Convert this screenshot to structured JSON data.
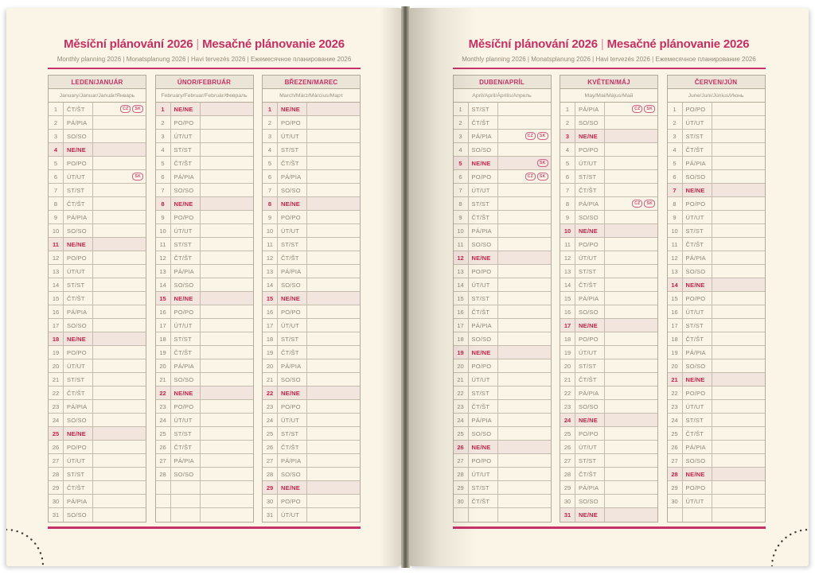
{
  "title": {
    "cs": "Měsíční plánování 2026",
    "divider": "|",
    "sk": "Mesačné plánovanie 2026"
  },
  "subtitle": "Monthly planning 2026 | Monatsplanung 2026 | Havi tervezés 2026 | Ежемесячное планирование 2026",
  "rows_per_month": 31,
  "sunday_label": "NE/NE",
  "badge_labels": [
    "CZ",
    "SK"
  ],
  "colors": {
    "page_background": "#faf5e6",
    "accent_pink": "#c6316a",
    "sunday_red": "#c1244a",
    "sunday_row_background": "#f2e5de",
    "body_text": "#8e8475",
    "header_row_background": "#eae5d7",
    "table_border": "#b3aa99"
  },
  "months": [
    {
      "key": "leden",
      "header": "LEDEN/JANUÁR",
      "subheader": "January/Januar/Január/Январь",
      "days": [
        {
          "d": 1,
          "w": "ČT/ŠT",
          "b": [
            "CZ",
            "SK"
          ]
        },
        {
          "d": 2,
          "w": "PÁ/PIA"
        },
        {
          "d": 3,
          "w": "SO/SO"
        },
        {
          "d": 4,
          "w": "NE/NE"
        },
        {
          "d": 5,
          "w": "PO/PO"
        },
        {
          "d": 6,
          "w": "ÚT/UT",
          "b": [
            "SK"
          ]
        },
        {
          "d": 7,
          "w": "ST/ST"
        },
        {
          "d": 8,
          "w": "ČT/ŠT"
        },
        {
          "d": 9,
          "w": "PÁ/PIA"
        },
        {
          "d": 10,
          "w": "SO/SO"
        },
        {
          "d": 11,
          "w": "NE/NE"
        },
        {
          "d": 12,
          "w": "PO/PO"
        },
        {
          "d": 13,
          "w": "ÚT/UT"
        },
        {
          "d": 14,
          "w": "ST/ST"
        },
        {
          "d": 15,
          "w": "ČT/ŠT"
        },
        {
          "d": 16,
          "w": "PÁ/PIA"
        },
        {
          "d": 17,
          "w": "SO/SO"
        },
        {
          "d": 18,
          "w": "NE/NE"
        },
        {
          "d": 19,
          "w": "PO/PO"
        },
        {
          "d": 20,
          "w": "ÚT/UT"
        },
        {
          "d": 21,
          "w": "ST/ST"
        },
        {
          "d": 22,
          "w": "ČT/ŠT"
        },
        {
          "d": 23,
          "w": "PÁ/PIA"
        },
        {
          "d": 24,
          "w": "SO/SO"
        },
        {
          "d": 25,
          "w": "NE/NE"
        },
        {
          "d": 26,
          "w": "PO/PO"
        },
        {
          "d": 27,
          "w": "ÚT/UT"
        },
        {
          "d": 28,
          "w": "ST/ST"
        },
        {
          "d": 29,
          "w": "ČT/ŠT"
        },
        {
          "d": 30,
          "w": "PÁ/PIA"
        },
        {
          "d": 31,
          "w": "SO/SO"
        }
      ]
    },
    {
      "key": "unor",
      "header": "ÚNOR/FEBRUÁR",
      "subheader": "February/Februar/Február/Февраль",
      "days": [
        {
          "d": 1,
          "w": "NE/NE"
        },
        {
          "d": 2,
          "w": "PO/PO"
        },
        {
          "d": 3,
          "w": "ÚT/UT"
        },
        {
          "d": 4,
          "w": "ST/ST"
        },
        {
          "d": 5,
          "w": "ČT/ŠT"
        },
        {
          "d": 6,
          "w": "PÁ/PIA"
        },
        {
          "d": 7,
          "w": "SO/SO"
        },
        {
          "d": 8,
          "w": "NE/NE"
        },
        {
          "d": 9,
          "w": "PO/PO"
        },
        {
          "d": 10,
          "w": "ÚT/UT"
        },
        {
          "d": 11,
          "w": "ST/ST"
        },
        {
          "d": 12,
          "w": "ČT/ŠT"
        },
        {
          "d": 13,
          "w": "PÁ/PIA"
        },
        {
          "d": 14,
          "w": "SO/SO"
        },
        {
          "d": 15,
          "w": "NE/NE"
        },
        {
          "d": 16,
          "w": "PO/PO"
        },
        {
          "d": 17,
          "w": "ÚT/UT"
        },
        {
          "d": 18,
          "w": "ST/ST"
        },
        {
          "d": 19,
          "w": "ČT/ŠT"
        },
        {
          "d": 20,
          "w": "PÁ/PIA"
        },
        {
          "d": 21,
          "w": "SO/SO"
        },
        {
          "d": 22,
          "w": "NE/NE"
        },
        {
          "d": 23,
          "w": "PO/PO"
        },
        {
          "d": 24,
          "w": "ÚT/UT"
        },
        {
          "d": 25,
          "w": "ST/ST"
        },
        {
          "d": 26,
          "w": "ČT/ŠT"
        },
        {
          "d": 27,
          "w": "PÁ/PIA"
        },
        {
          "d": 28,
          "w": "SO/SO"
        }
      ]
    },
    {
      "key": "brezen",
      "header": "BŘEZEN/MAREC",
      "subheader": "March/März/Március/Март",
      "days": [
        {
          "d": 1,
          "w": "NE/NE"
        },
        {
          "d": 2,
          "w": "PO/PO"
        },
        {
          "d": 3,
          "w": "ÚT/UT"
        },
        {
          "d": 4,
          "w": "ST/ST"
        },
        {
          "d": 5,
          "w": "ČT/ŠT"
        },
        {
          "d": 6,
          "w": "PÁ/PIA"
        },
        {
          "d": 7,
          "w": "SO/SO"
        },
        {
          "d": 8,
          "w": "NE/NE"
        },
        {
          "d": 9,
          "w": "PO/PO"
        },
        {
          "d": 10,
          "w": "ÚT/UT"
        },
        {
          "d": 11,
          "w": "ST/ST"
        },
        {
          "d": 12,
          "w": "ČT/ŠT"
        },
        {
          "d": 13,
          "w": "PÁ/PIA"
        },
        {
          "d": 14,
          "w": "SO/SO"
        },
        {
          "d": 15,
          "w": "NE/NE"
        },
        {
          "d": 16,
          "w": "PO/PO"
        },
        {
          "d": 17,
          "w": "ÚT/UT"
        },
        {
          "d": 18,
          "w": "ST/ST"
        },
        {
          "d": 19,
          "w": "ČT/ŠT"
        },
        {
          "d": 20,
          "w": "PÁ/PIA"
        },
        {
          "d": 21,
          "w": "SO/SO"
        },
        {
          "d": 22,
          "w": "NE/NE"
        },
        {
          "d": 23,
          "w": "PO/PO"
        },
        {
          "d": 24,
          "w": "ÚT/UT"
        },
        {
          "d": 25,
          "w": "ST/ST"
        },
        {
          "d": 26,
          "w": "ČT/ŠT"
        },
        {
          "d": 27,
          "w": "PÁ/PIA"
        },
        {
          "d": 28,
          "w": "SO/SO"
        },
        {
          "d": 29,
          "w": "NE/NE"
        },
        {
          "d": 30,
          "w": "PO/PO"
        },
        {
          "d": 31,
          "w": "ÚT/UT"
        }
      ]
    },
    {
      "key": "duben",
      "header": "DUBEN/APRÍL",
      "subheader": "April/April/Április/Апрель",
      "days": [
        {
          "d": 1,
          "w": "ST/ST"
        },
        {
          "d": 2,
          "w": "ČT/ŠT"
        },
        {
          "d": 3,
          "w": "PÁ/PIA",
          "b": [
            "CZ",
            "SK"
          ]
        },
        {
          "d": 4,
          "w": "SO/SO"
        },
        {
          "d": 5,
          "w": "NE/NE",
          "b": [
            "SK"
          ]
        },
        {
          "d": 6,
          "w": "PO/PO",
          "b": [
            "CZ",
            "SK"
          ]
        },
        {
          "d": 7,
          "w": "ÚT/UT"
        },
        {
          "d": 8,
          "w": "ST/ST"
        },
        {
          "d": 9,
          "w": "ČT/ŠT"
        },
        {
          "d": 10,
          "w": "PÁ/PIA"
        },
        {
          "d": 11,
          "w": "SO/SO"
        },
        {
          "d": 12,
          "w": "NE/NE"
        },
        {
          "d": 13,
          "w": "PO/PO"
        },
        {
          "d": 14,
          "w": "ÚT/UT"
        },
        {
          "d": 15,
          "w": "ST/ST"
        },
        {
          "d": 16,
          "w": "ČT/ŠT"
        },
        {
          "d": 17,
          "w": "PÁ/PIA"
        },
        {
          "d": 18,
          "w": "SO/SO"
        },
        {
          "d": 19,
          "w": "NE/NE"
        },
        {
          "d": 20,
          "w": "PO/PO"
        },
        {
          "d": 21,
          "w": "ÚT/UT"
        },
        {
          "d": 22,
          "w": "ST/ST"
        },
        {
          "d": 23,
          "w": "ČT/ŠT"
        },
        {
          "d": 24,
          "w": "PÁ/PIA"
        },
        {
          "d": 25,
          "w": "SO/SO"
        },
        {
          "d": 26,
          "w": "NE/NE"
        },
        {
          "d": 27,
          "w": "PO/PO"
        },
        {
          "d": 28,
          "w": "ÚT/UT"
        },
        {
          "d": 29,
          "w": "ST/ST"
        },
        {
          "d": 30,
          "w": "ČT/ŠT"
        }
      ]
    },
    {
      "key": "kveten",
      "header": "KVĚTEN/MÁJ",
      "subheader": "May/Mai/Május/Май",
      "days": [
        {
          "d": 1,
          "w": "PÁ/PIA",
          "b": [
            "CZ",
            "SK"
          ]
        },
        {
          "d": 2,
          "w": "SO/SO"
        },
        {
          "d": 3,
          "w": "NE/NE"
        },
        {
          "d": 4,
          "w": "PO/PO"
        },
        {
          "d": 5,
          "w": "ÚT/UT"
        },
        {
          "d": 6,
          "w": "ST/ST"
        },
        {
          "d": 7,
          "w": "ČT/ŠT"
        },
        {
          "d": 8,
          "w": "PÁ/PIA",
          "b": [
            "CZ",
            "SK"
          ]
        },
        {
          "d": 9,
          "w": "SO/SO"
        },
        {
          "d": 10,
          "w": "NE/NE"
        },
        {
          "d": 11,
          "w": "PO/PO"
        },
        {
          "d": 12,
          "w": "ÚT/UT"
        },
        {
          "d": 13,
          "w": "ST/ST"
        },
        {
          "d": 14,
          "w": "ČT/ŠT"
        },
        {
          "d": 15,
          "w": "PÁ/PIA"
        },
        {
          "d": 16,
          "w": "SO/SO"
        },
        {
          "d": 17,
          "w": "NE/NE"
        },
        {
          "d": 18,
          "w": "PO/PO"
        },
        {
          "d": 19,
          "w": "ÚT/UT"
        },
        {
          "d": 20,
          "w": "ST/ST"
        },
        {
          "d": 21,
          "w": "ČT/ŠT"
        },
        {
          "d": 22,
          "w": "PÁ/PIA"
        },
        {
          "d": 23,
          "w": "SO/SO"
        },
        {
          "d": 24,
          "w": "NE/NE"
        },
        {
          "d": 25,
          "w": "PO/PO"
        },
        {
          "d": 26,
          "w": "ÚT/UT"
        },
        {
          "d": 27,
          "w": "ST/ST"
        },
        {
          "d": 28,
          "w": "ČT/ŠT"
        },
        {
          "d": 29,
          "w": "PÁ/PIA"
        },
        {
          "d": 30,
          "w": "SO/SO"
        },
        {
          "d": 31,
          "w": "NE/NE"
        }
      ]
    },
    {
      "key": "cerven",
      "header": "ČERVEN/JÚN",
      "subheader": "June/Juni/Június/Июнь",
      "days": [
        {
          "d": 1,
          "w": "PO/PO"
        },
        {
          "d": 2,
          "w": "ÚT/UT"
        },
        {
          "d": 3,
          "w": "ST/ST"
        },
        {
          "d": 4,
          "w": "ČT/ŠT"
        },
        {
          "d": 5,
          "w": "PÁ/PIA"
        },
        {
          "d": 6,
          "w": "SO/SO"
        },
        {
          "d": 7,
          "w": "NE/NE"
        },
        {
          "d": 8,
          "w": "PO/PO"
        },
        {
          "d": 9,
          "w": "ÚT/UT"
        },
        {
          "d": 10,
          "w": "ST/ST"
        },
        {
          "d": 11,
          "w": "ČT/ŠT"
        },
        {
          "d": 12,
          "w": "PÁ/PIA"
        },
        {
          "d": 13,
          "w": "SO/SO"
        },
        {
          "d": 14,
          "w": "NE/NE"
        },
        {
          "d": 15,
          "w": "PO/PO"
        },
        {
          "d": 16,
          "w": "ÚT/UT"
        },
        {
          "d": 17,
          "w": "ST/ST"
        },
        {
          "d": 18,
          "w": "ČT/ŠT"
        },
        {
          "d": 19,
          "w": "PÁ/PIA"
        },
        {
          "d": 20,
          "w": "SO/SO"
        },
        {
          "d": 21,
          "w": "NE/NE"
        },
        {
          "d": 22,
          "w": "PO/PO"
        },
        {
          "d": 23,
          "w": "ÚT/UT"
        },
        {
          "d": 24,
          "w": "ST/ST"
        },
        {
          "d": 25,
          "w": "ČT/ŠT"
        },
        {
          "d": 26,
          "w": "PÁ/PIA"
        },
        {
          "d": 27,
          "w": "SO/SO"
        },
        {
          "d": 28,
          "w": "NE/NE"
        },
        {
          "d": 29,
          "w": "PO/PO"
        },
        {
          "d": 30,
          "w": "ÚT/UT"
        }
      ]
    }
  ]
}
